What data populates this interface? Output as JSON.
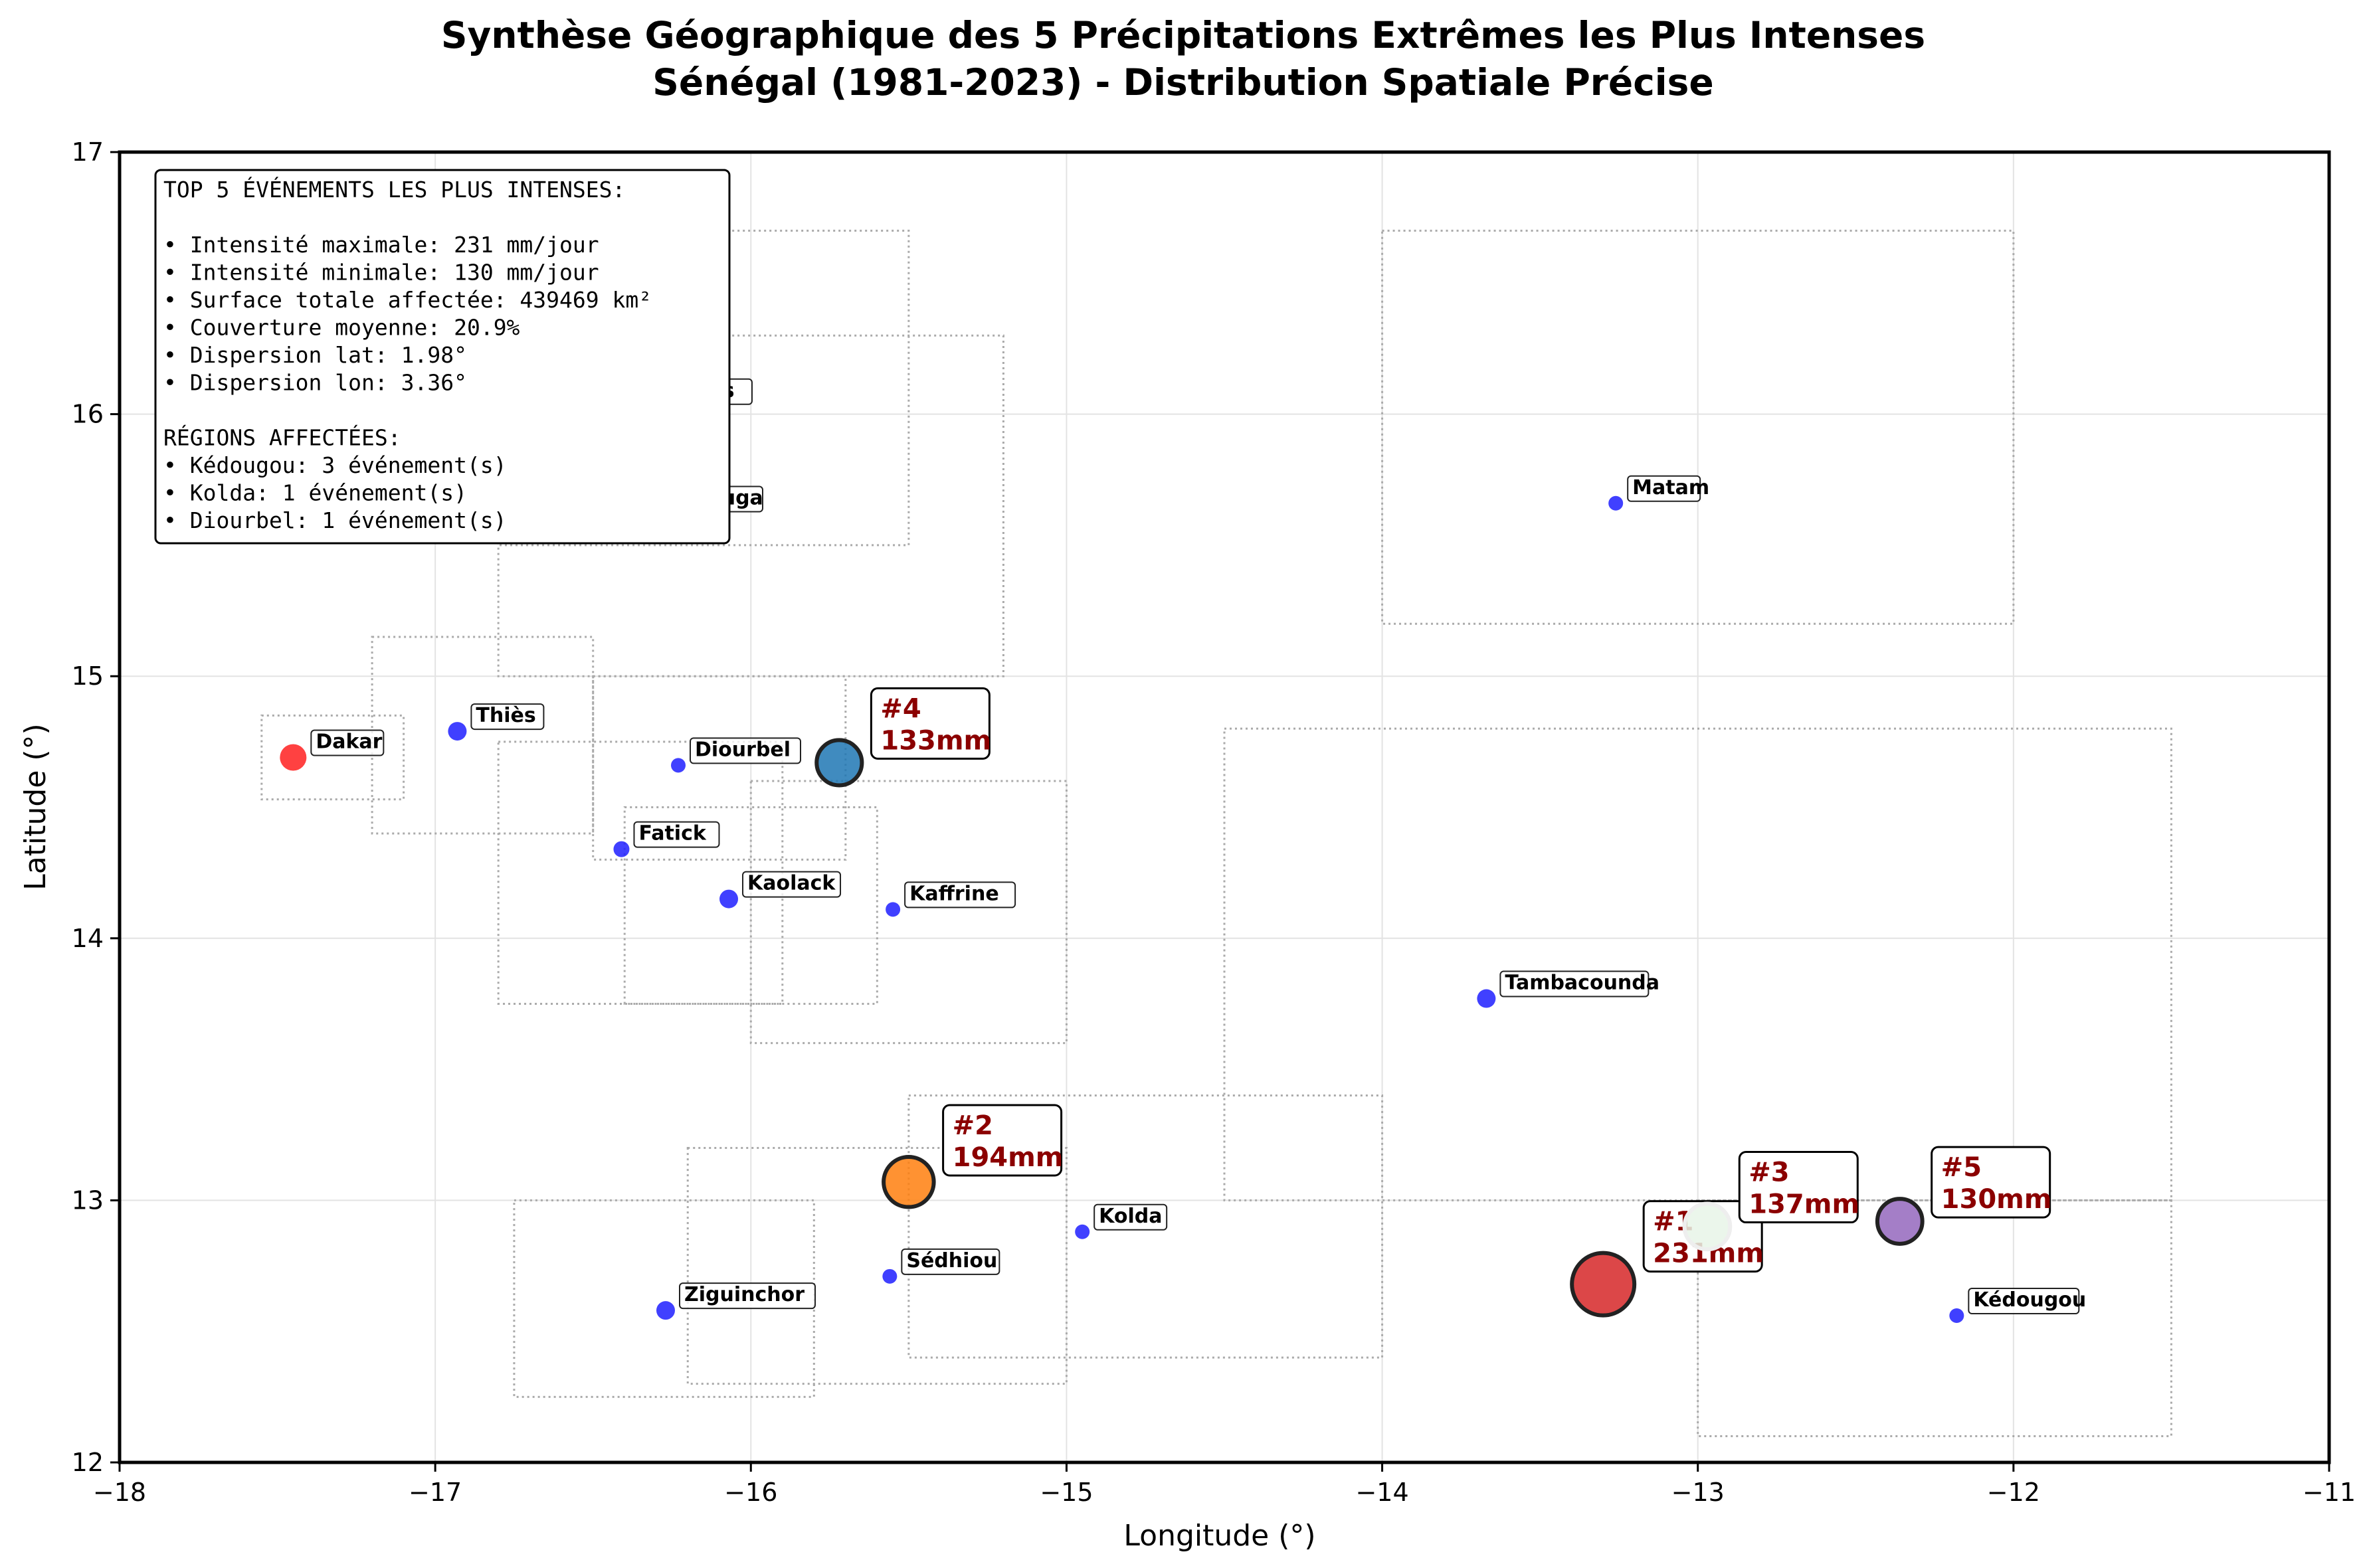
{
  "chart_data": {
    "type": "scatter",
    "title_line1": "Synthèse Géographique des 5 Précipitations Extrêmes les Plus Intenses",
    "title_line2": "Sénégal (1981-2023) - Distribution Spatiale Précise",
    "xlabel": "Longitude (°)",
    "ylabel": "Latitude (°)",
    "xlim": [
      -18,
      -11
    ],
    "ylim": [
      12,
      17
    ],
    "xticks": [
      -18,
      -17,
      -16,
      -15,
      -14,
      -13,
      -12,
      -11
    ],
    "yticks": [
      12,
      13,
      14,
      15,
      16,
      17
    ],
    "xtick_labels": [
      "−18",
      "−17",
      "−16",
      "−15",
      "−14",
      "−13",
      "−12",
      "−11"
    ],
    "ytick_labels": [
      "12",
      "13",
      "14",
      "15",
      "16",
      "17"
    ],
    "grid": true,
    "city_color": "#1f1fff",
    "dakar_color": "#ff2020",
    "region_box_color": "#aaaaaa",
    "cities": [
      {
        "name": "Dakar",
        "lon": -17.45,
        "lat": 14.69,
        "highlight": true
      },
      {
        "name": "Thiès",
        "lon": -16.93,
        "lat": 14.79
      },
      {
        "name": "Diourbel",
        "lon": -16.23,
        "lat": 14.66
      },
      {
        "name": "Fatick",
        "lon": -16.41,
        "lat": 14.34
      },
      {
        "name": "Kaolack",
        "lon": -16.07,
        "lat": 14.15
      },
      {
        "name": "Kaffrine",
        "lon": -15.55,
        "lat": 14.11
      },
      {
        "name": "Saint-Louis",
        "lon": -16.51,
        "lat": 16.03,
        "faded": true
      },
      {
        "name": "Louga",
        "lon": -16.23,
        "lat": 15.62,
        "faded": true
      },
      {
        "name": "Matam",
        "lon": -13.26,
        "lat": 15.66
      },
      {
        "name": "Tambacounda",
        "lon": -13.67,
        "lat": 13.77
      },
      {
        "name": "Kolda",
        "lon": -14.95,
        "lat": 12.88
      },
      {
        "name": "Sédhiou",
        "lon": -15.56,
        "lat": 12.71
      },
      {
        "name": "Ziguinchor",
        "lon": -16.27,
        "lat": 12.58
      },
      {
        "name": "Kédougou",
        "lon": -12.18,
        "lat": 12.56
      }
    ],
    "region_boxes": [
      {
        "lon": [
          -17.55,
          -17.1
        ],
        "lat": [
          14.53,
          14.85
        ]
      },
      {
        "lon": [
          -17.2,
          -16.5
        ],
        "lat": [
          14.4,
          15.15
        ]
      },
      {
        "lon": [
          -16.8,
          -15.5
        ],
        "lat": [
          15.5,
          16.7
        ]
      },
      {
        "lon": [
          -16.8,
          -15.2
        ],
        "lat": [
          15.0,
          16.3
        ]
      },
      {
        "lon": [
          -16.5,
          -15.7
        ],
        "lat": [
          14.3,
          15.0
        ]
      },
      {
        "lon": [
          -16.8,
          -15.9
        ],
        "lat": [
          13.75,
          14.75
        ]
      },
      {
        "lon": [
          -16.4,
          -15.6
        ],
        "lat": [
          13.75,
          14.5
        ]
      },
      {
        "lon": [
          -16.0,
          -15.0
        ],
        "lat": [
          13.6,
          14.6
        ]
      },
      {
        "lon": [
          -14.0,
          -12.0
        ],
        "lat": [
          15.2,
          16.7
        ]
      },
      {
        "lon": [
          -14.5,
          -11.5
        ],
        "lat": [
          13.0,
          14.8
        ]
      },
      {
        "lon": [
          -15.5,
          -14.0
        ],
        "lat": [
          12.4,
          13.4
        ]
      },
      {
        "lon": [
          -16.2,
          -15.0
        ],
        "lat": [
          12.3,
          13.2
        ]
      },
      {
        "lon": [
          -16.75,
          -15.8
        ],
        "lat": [
          12.25,
          13.0
        ]
      },
      {
        "lon": [
          -13.0,
          -11.5
        ],
        "lat": [
          12.1,
          13.0
        ]
      }
    ],
    "events": [
      {
        "rank": "#1",
        "label": "231mm",
        "value": 231,
        "lon": -13.3,
        "lat": 12.68,
        "color": "#d62728"
      },
      {
        "rank": "#2",
        "label": "194mm",
        "value": 194,
        "lon": -15.5,
        "lat": 13.07,
        "color": "#ff7f0e"
      },
      {
        "rank": "#3",
        "label": "137mm",
        "value": 137,
        "lon": -12.97,
        "lat": 12.9,
        "color": "#e8f4e8"
      },
      {
        "rank": "#4",
        "label": "133mm",
        "value": 133,
        "lon": -15.72,
        "lat": 14.67,
        "color": "#1f77b4"
      },
      {
        "rank": "#5",
        "label": "130mm",
        "value": 130,
        "lon": -12.36,
        "lat": 12.92,
        "color": "#9467bd"
      }
    ],
    "stats_box": {
      "heading": "TOP 5 ÉVÉNEMENTS LES PLUS INTENSES:",
      "lines": [
        "• Intensité maximale: 231 mm/jour",
        "• Intensité minimale: 130 mm/jour",
        "• Surface totale affectée: 439469 km²",
        "• Couverture moyenne: 20.9%",
        "• Dispersion lat: 1.98°",
        "• Dispersion lon: 3.36°"
      ],
      "regions_heading": "RÉGIONS AFFECTÉES:",
      "region_lines": [
        "• Kédougou: 3 événement(s)",
        "• Kolda: 1 événement(s)",
        "• Diourbel: 1 événement(s)"
      ],
      "placement": "top-left"
    }
  }
}
